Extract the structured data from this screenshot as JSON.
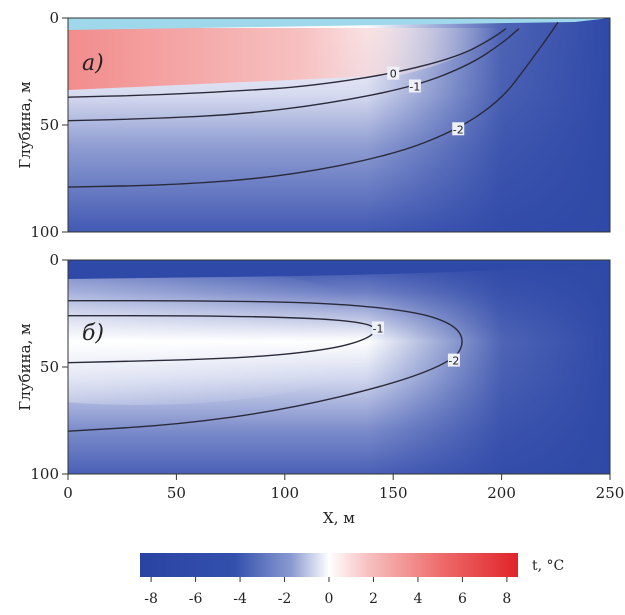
{
  "chart_data": {
    "type": "heatmap",
    "panels": [
      {
        "label": "а)",
        "ylabel": "Глубина, м",
        "xlim": [
          0,
          250
        ],
        "ylim": [
          100,
          0
        ],
        "yticks": [
          0,
          50,
          100
        ],
        "contours": [
          {
            "level": "0",
            "points": [
              [
                0,
                37
              ],
              [
                40,
                36
              ],
              [
                80,
                34
              ],
              [
                110,
                32
              ],
              [
                150,
                26
              ],
              [
                180,
                18
              ],
              [
                195,
                10
              ],
              [
                202,
                5
              ]
            ]
          },
          {
            "level": "-1",
            "points": [
              [
                0,
                48
              ],
              [
                40,
                47
              ],
              [
                80,
                45
              ],
              [
                120,
                40
              ],
              [
                160,
                32
              ],
              [
                185,
                22
              ],
              [
                200,
                12
              ],
              [
                208,
                5
              ]
            ]
          },
          {
            "level": "-2",
            "points": [
              [
                0,
                79
              ],
              [
                50,
                78
              ],
              [
                100,
                74
              ],
              [
                150,
                64
              ],
              [
                180,
                52
              ],
              [
                200,
                38
              ],
              [
                212,
                22
              ],
              [
                222,
                8
              ],
              [
                226,
                2
              ]
            ]
          }
        ]
      },
      {
        "label": "б)",
        "ylabel": "Глубина, м",
        "xlim": [
          0,
          250
        ],
        "ylim": [
          100,
          0
        ],
        "yticks": [
          0,
          50,
          100
        ],
        "xticks": [
          0,
          50,
          100,
          150,
          200,
          250
        ],
        "xlabel": "X, м",
        "contours": [
          {
            "level": "-1",
            "points": [
              [
                0,
                26
              ],
              [
                60,
                26
              ],
              [
                110,
                27
              ],
              [
                135,
                29
              ],
              [
                143,
                32
              ],
              [
                138,
                37
              ],
              [
                120,
                42
              ],
              [
                80,
                46
              ],
              [
                0,
                48
              ]
            ]
          },
          {
            "level": "-2",
            "points": [
              [
                0,
                19
              ],
              [
                60,
                19
              ],
              [
                120,
                20
              ],
              [
                160,
                24
              ],
              [
                178,
                30
              ],
              [
                183,
                38
              ],
              [
                178,
                47
              ],
              [
                150,
                58
              ],
              [
                100,
                70
              ],
              [
                50,
                77
              ],
              [
                0,
                80
              ]
            ]
          }
        ]
      }
    ],
    "colorbar": {
      "label": "t, °C",
      "min": -8.5,
      "max": 8.5,
      "ticks": [
        -8,
        -6,
        -4,
        -2,
        0,
        2,
        4,
        6,
        8
      ],
      "colors": {
        "cold": "#2f49a8",
        "mid": "#ffffff",
        "warm": "#e0262b"
      }
    }
  }
}
